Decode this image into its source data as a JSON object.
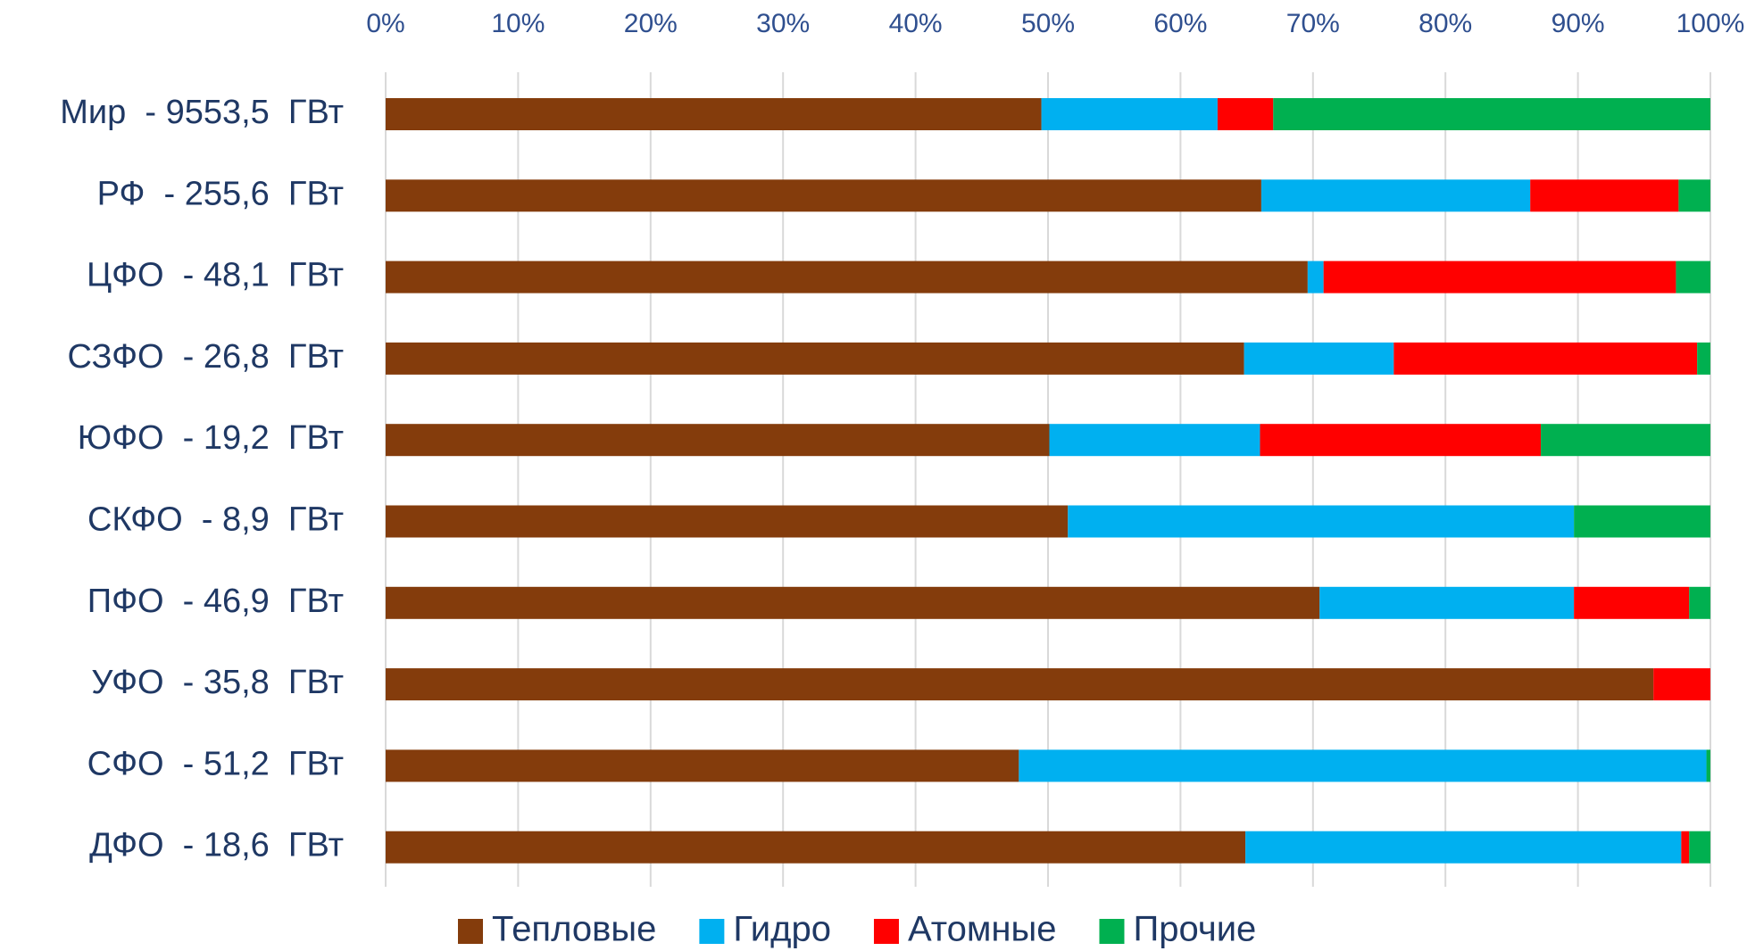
{
  "chart_data": {
    "type": "stacked_barh",
    "categories": [
      "Мир  - 9553,5  ГВт",
      "РФ  - 255,6  ГВт",
      "ЦФО  - 48,1  ГВт",
      "СЗФО  - 26,8  ГВт",
      "ЮФО  - 19,2  ГВт",
      "СКФО  - 8,9  ГВт",
      "ПФО  - 46,9  ГВт",
      "УФО  - 35,8  ГВт",
      "СФО  - 51,2  ГВт",
      "ДФО  - 18,6  ГВт"
    ],
    "series": [
      {
        "name": "Тепловые",
        "color": "#843c0c",
        "values": [
          49.5,
          66.1,
          69.6,
          64.8,
          50.1,
          51.5,
          70.5,
          95.7,
          47.8,
          64.9
        ]
      },
      {
        "name": "Гидро",
        "color": "#00b0f0",
        "values": [
          13.3,
          20.3,
          1.2,
          11.3,
          15.9,
          38.2,
          19.2,
          0,
          51.9,
          32.9
        ]
      },
      {
        "name": "Атомные",
        "color": "#ff0000",
        "values": [
          4.2,
          11.2,
          26.6,
          22.9,
          21.2,
          0,
          8.7,
          4.3,
          0,
          0.6
        ]
      },
      {
        "name": "Прочие",
        "color": "#00b050",
        "values": [
          33.0,
          2.4,
          2.6,
          1.0,
          12.8,
          10.3,
          1.6,
          0,
          0.3,
          1.6
        ]
      }
    ],
    "xlim": [
      0,
      100
    ],
    "xticks": [
      {
        "value": 0,
        "label": "0%"
      },
      {
        "value": 10,
        "label": "10%"
      },
      {
        "value": 20,
        "label": "20%"
      },
      {
        "value": 30,
        "label": "30%"
      },
      {
        "value": 40,
        "label": "40%"
      },
      {
        "value": 50,
        "label": "50%"
      },
      {
        "value": 60,
        "label": "60%"
      },
      {
        "value": 70,
        "label": "70%"
      },
      {
        "value": 80,
        "label": "80%"
      },
      {
        "value": 90,
        "label": "90%"
      },
      {
        "value": 100,
        "label": "100%"
      }
    ],
    "grid": true,
    "legend": "bottom"
  }
}
